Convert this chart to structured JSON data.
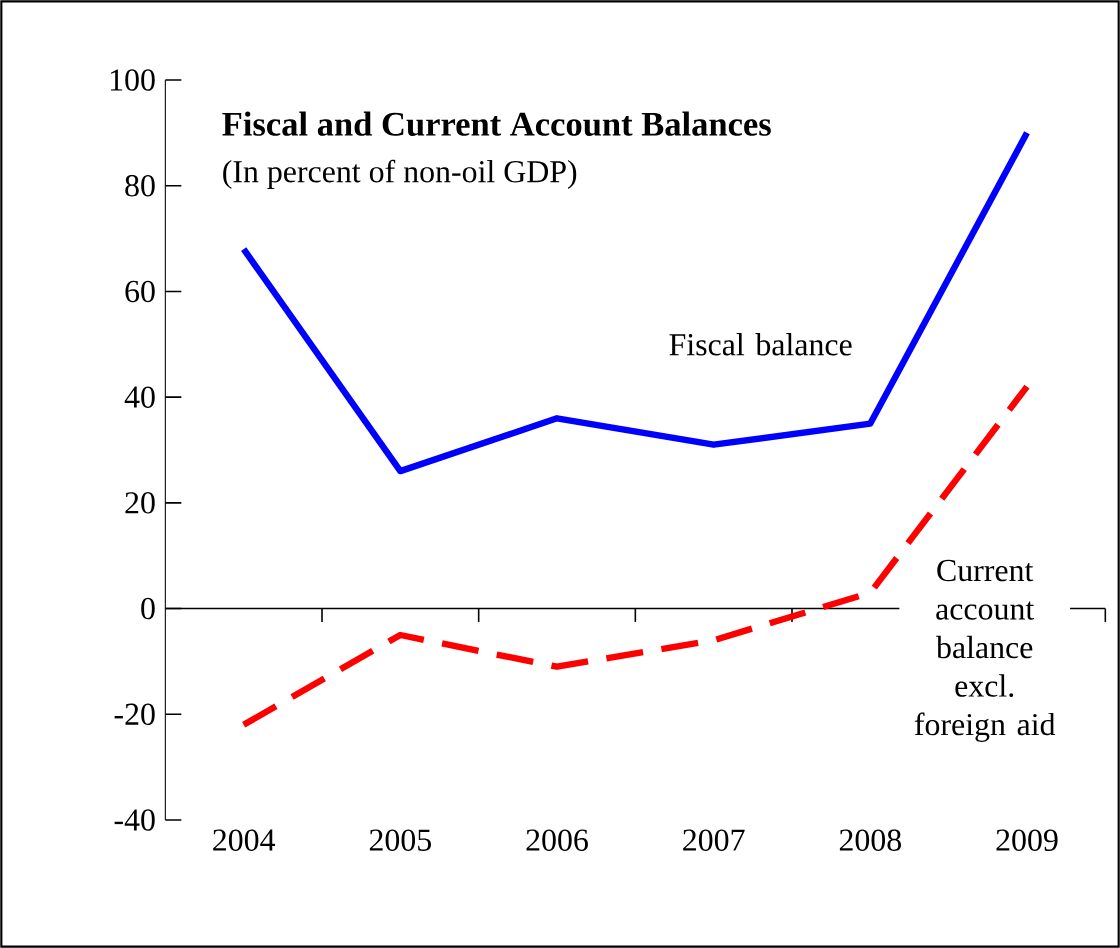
{
  "chart_data": {
    "type": "line",
    "title": "Fiscal and Current Account Balances",
    "subtitle": "(In percent of non-oil GDP)",
    "categories": [
      "2004",
      "2005",
      "2006",
      "2007",
      "2008",
      "2009"
    ],
    "series": [
      {
        "name": "Fiscal balance",
        "color": "#0000ff",
        "line_style": "solid",
        "values": [
          68,
          26,
          36,
          31,
          35,
          90
        ]
      },
      {
        "name": "Current account balance excl. foreign aid",
        "color": "#ff0000",
        "line_style": "dashed",
        "values": [
          -22,
          -5,
          -11,
          -6,
          3,
          42
        ]
      }
    ],
    "ylim": [
      -40,
      100
    ],
    "yticks": [
      -40,
      -20,
      0,
      20,
      40,
      60,
      80,
      100
    ],
    "marker": "none"
  }
}
